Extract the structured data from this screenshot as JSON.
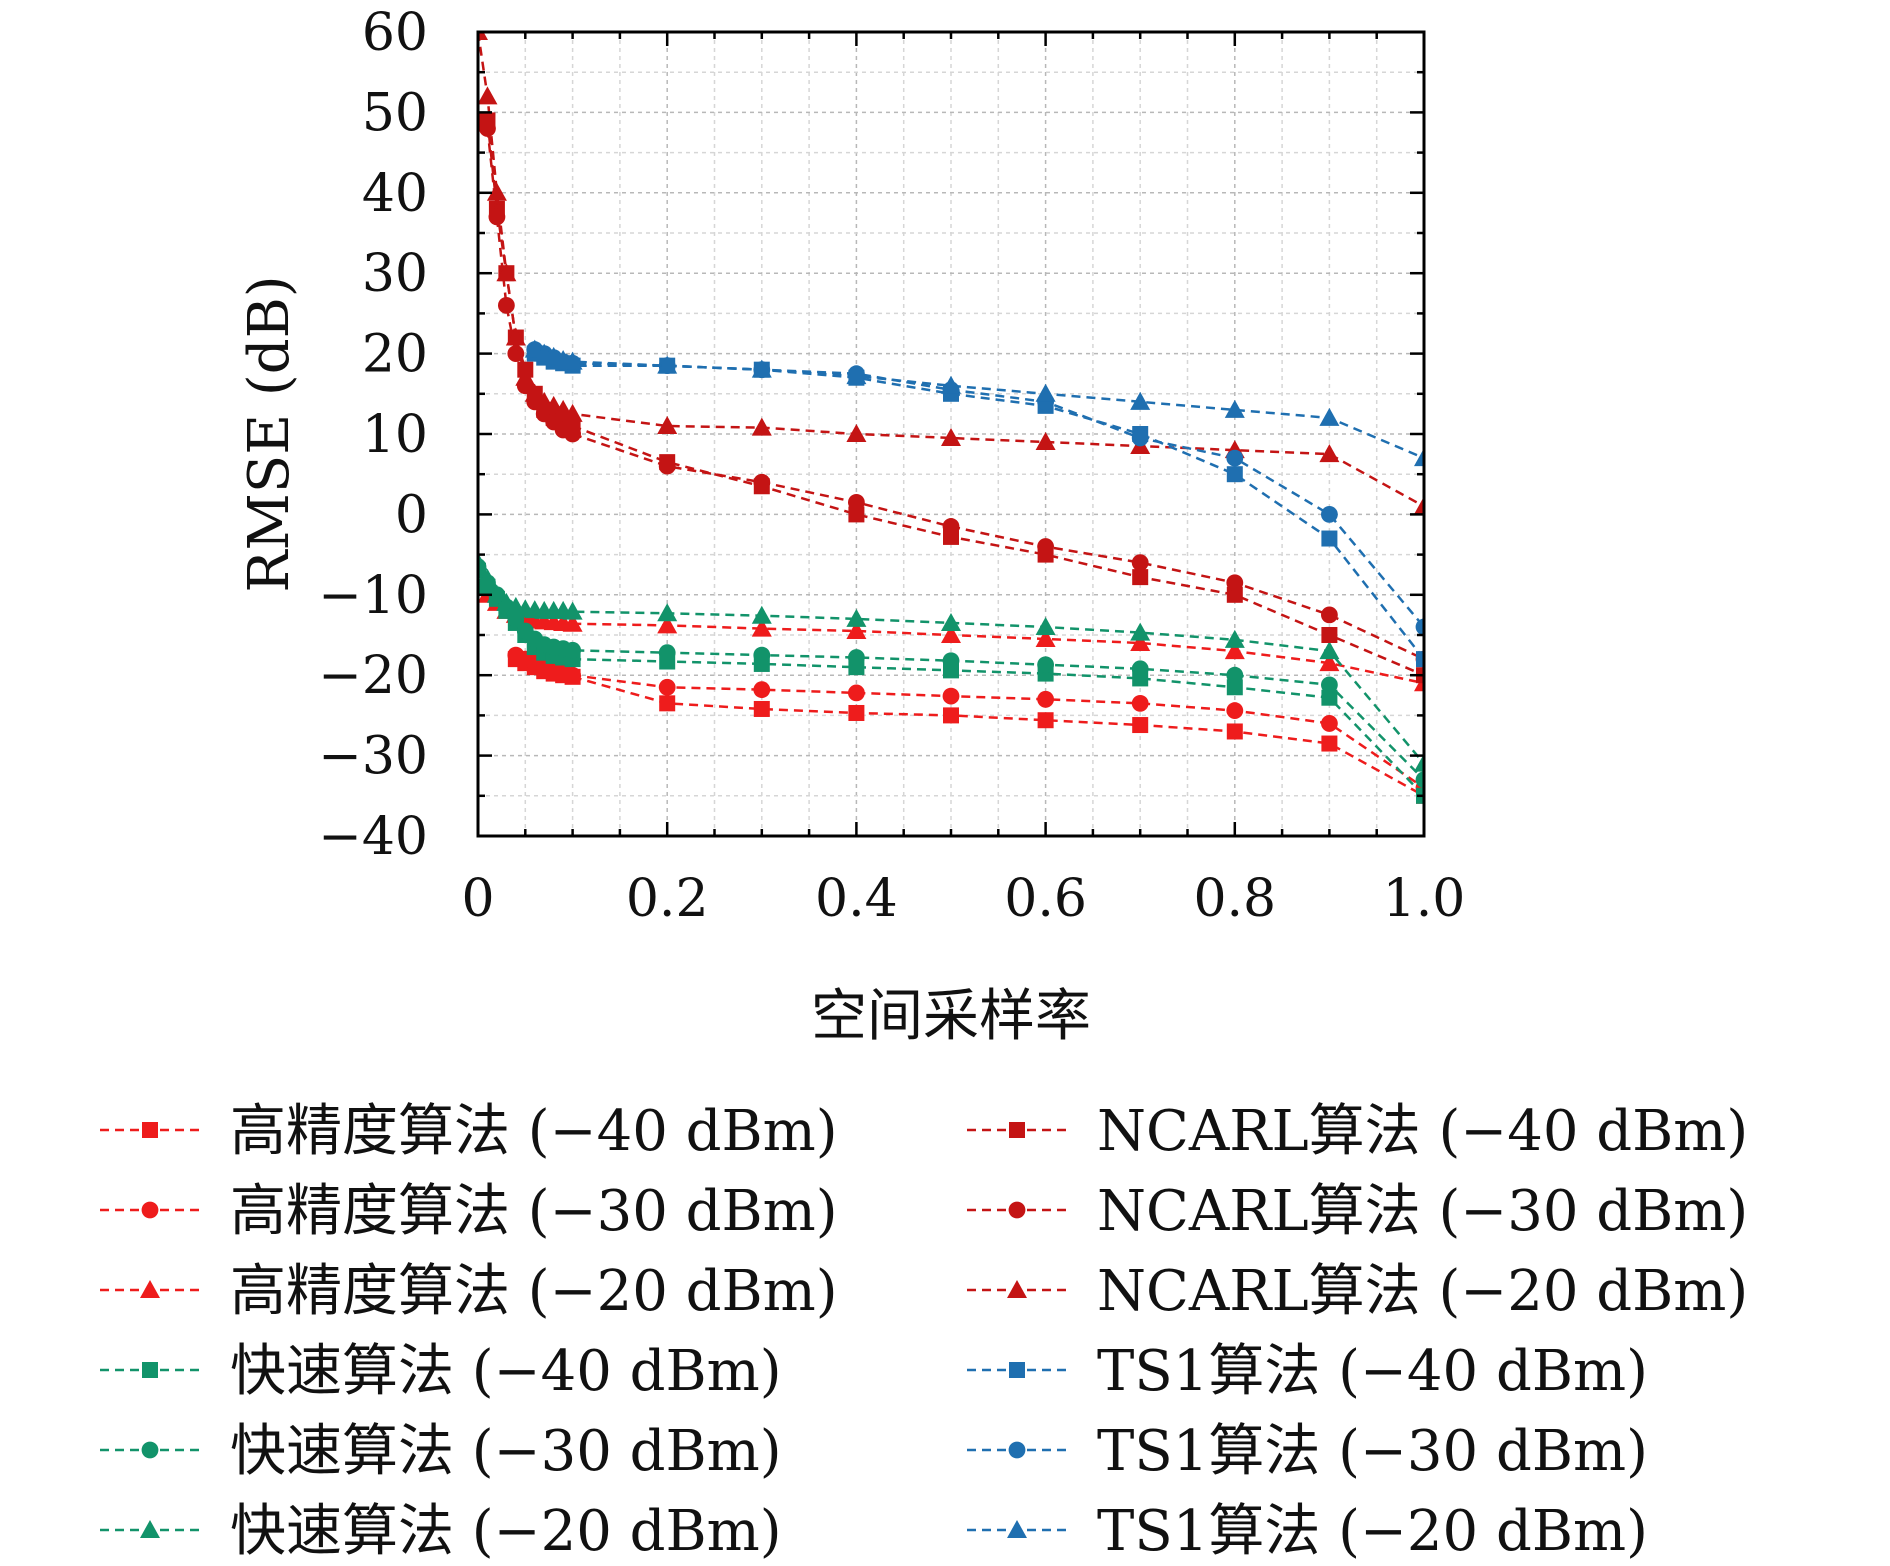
{
  "chart_data": {
    "type": "line",
    "xlabel": "空间采样率",
    "ylabel": "RMSE (dB)",
    "xlim": [
      0,
      1.0
    ],
    "ylim": [
      -40,
      60
    ],
    "x_ticks": [
      0,
      0.2,
      0.4,
      0.6,
      0.8,
      1.0
    ],
    "x_tick_labels": [
      "0",
      "0.2",
      "0.4",
      "0.6",
      "0.8",
      "1.0"
    ],
    "y_ticks": [
      60,
      50,
      40,
      30,
      20,
      10,
      0,
      -10,
      -20,
      -30,
      -40
    ],
    "y_tick_labels": [
      "60",
      "50",
      "40",
      "30",
      "20",
      "10",
      "0",
      "−10",
      "−20",
      "−30",
      "−40"
    ],
    "grid": true,
    "legend_position": "bottom",
    "series": [
      {
        "name": "高精度算法 (−40 dBm)",
        "color": "#ee1c1c",
        "marker": "square",
        "x": [
          0.04,
          0.05,
          0.06,
          0.07,
          0.08,
          0.09,
          0.1,
          0.2,
          0.3,
          0.4,
          0.5,
          0.6,
          0.7,
          0.8,
          0.9,
          1.0
        ],
        "y": [
          -18,
          -18.5,
          -19,
          -19.5,
          -19.8,
          -20,
          -20.2,
          -23.5,
          -24.2,
          -24.7,
          -25,
          -25.6,
          -26.2,
          -27,
          -28.5,
          -35
        ]
      },
      {
        "name": "高精度算法 (−30 dBm)",
        "color": "#ee1c1c",
        "marker": "circle",
        "x": [
          0.04,
          0.05,
          0.06,
          0.07,
          0.08,
          0.09,
          0.1,
          0.2,
          0.3,
          0.4,
          0.5,
          0.6,
          0.7,
          0.8,
          0.9,
          1.0
        ],
        "y": [
          -17.5,
          -18,
          -18.5,
          -19,
          -19.3,
          -19.6,
          -20,
          -21.5,
          -21.8,
          -22.2,
          -22.6,
          -23,
          -23.5,
          -24.4,
          -26,
          -34
        ]
      },
      {
        "name": "高精度算法 (−20 dBm)",
        "color": "#ee1c1c",
        "marker": "triangle",
        "x": [
          0,
          0.01,
          0.02,
          0.03,
          0.04,
          0.05,
          0.06,
          0.07,
          0.08,
          0.09,
          0.1,
          0.2,
          0.3,
          0.4,
          0.5,
          0.6,
          0.7,
          0.8,
          0.9,
          1.0
        ],
        "y": [
          -9,
          -10,
          -11,
          -12,
          -12.5,
          -13,
          -13.2,
          -13.3,
          -13.4,
          -13.5,
          -13.6,
          -13.8,
          -14.2,
          -14.5,
          -15,
          -15.5,
          -16,
          -17,
          -18.5,
          -21
        ]
      },
      {
        "name": "快速算法 (−40 dBm)",
        "color": "#12936a",
        "marker": "square",
        "x": [
          0,
          0.01,
          0.02,
          0.03,
          0.04,
          0.05,
          0.06,
          0.07,
          0.08,
          0.09,
          0.1,
          0.2,
          0.3,
          0.4,
          0.5,
          0.6,
          0.7,
          0.8,
          0.9,
          1.0
        ],
        "y": [
          -7,
          -9,
          -10.5,
          -12,
          -13.5,
          -15,
          -16.5,
          -17.2,
          -17.6,
          -17.8,
          -18,
          -18.3,
          -18.6,
          -19,
          -19.4,
          -19.8,
          -20.4,
          -21.5,
          -22.8,
          -35
        ]
      },
      {
        "name": "快速算法 (−30 dBm)",
        "color": "#12936a",
        "marker": "circle",
        "x": [
          0,
          0.01,
          0.02,
          0.03,
          0.04,
          0.05,
          0.06,
          0.07,
          0.08,
          0.09,
          0.1,
          0.2,
          0.3,
          0.4,
          0.5,
          0.6,
          0.7,
          0.8,
          0.9,
          1.0
        ],
        "y": [
          -6.5,
          -8.5,
          -10,
          -11.5,
          -13,
          -14.5,
          -15.5,
          -16.2,
          -16.5,
          -16.7,
          -16.9,
          -17.2,
          -17.5,
          -17.8,
          -18.2,
          -18.7,
          -19.2,
          -20,
          -21.2,
          -33
        ]
      },
      {
        "name": "快速算法 (−20 dBm)",
        "color": "#12936a",
        "marker": "triangle",
        "x": [
          0,
          0.01,
          0.02,
          0.03,
          0.04,
          0.05,
          0.06,
          0.07,
          0.08,
          0.09,
          0.1,
          0.2,
          0.3,
          0.4,
          0.5,
          0.6,
          0.7,
          0.8,
          0.9,
          1.0
        ],
        "y": [
          -6,
          -8,
          -10,
          -11,
          -11.5,
          -11.8,
          -11.9,
          -12,
          -12,
          -12,
          -12.1,
          -12.3,
          -12.6,
          -13,
          -13.5,
          -14,
          -14.7,
          -15.6,
          -17,
          -31
        ]
      },
      {
        "name": "NCARL算法 (−40 dBm)",
        "color": "#c41414",
        "marker": "square",
        "x": [
          0.01,
          0.02,
          0.03,
          0.04,
          0.05,
          0.06,
          0.07,
          0.08,
          0.09,
          0.1,
          0.2,
          0.3,
          0.4,
          0.5,
          0.6,
          0.7,
          0.8,
          0.9,
          1.0
        ],
        "y": [
          49,
          38,
          30,
          22,
          18,
          15,
          13,
          12,
          11.5,
          11,
          6.5,
          3.5,
          0,
          -2.8,
          -5,
          -7.8,
          -10,
          -15,
          -20
        ]
      },
      {
        "name": "NCARL算法 (−30 dBm)",
        "color": "#c41414",
        "marker": "circle",
        "x": [
          0.01,
          0.02,
          0.03,
          0.04,
          0.05,
          0.06,
          0.07,
          0.08,
          0.09,
          0.1,
          0.2,
          0.3,
          0.4,
          0.5,
          0.6,
          0.7,
          0.8,
          0.9,
          1.0
        ],
        "y": [
          48,
          37,
          26,
          20,
          16,
          14,
          12.5,
          11.5,
          10.5,
          10,
          6,
          4,
          1.5,
          -1.5,
          -4,
          -6,
          -8.5,
          -12.5,
          -18
        ]
      },
      {
        "name": "NCARL算法 (−20 dBm)",
        "color": "#c41414",
        "marker": "triangle",
        "x": [
          0,
          0.01,
          0.02,
          0.03,
          0.04,
          0.05,
          0.06,
          0.07,
          0.08,
          0.09,
          0.1,
          0.2,
          0.3,
          0.4,
          0.5,
          0.6,
          0.7,
          0.8,
          0.9,
          1.0
        ],
        "y": [
          60,
          52,
          40,
          30,
          22,
          17,
          15,
          14,
          13.5,
          13,
          12.5,
          11,
          10.8,
          10,
          9.5,
          9,
          8.5,
          8,
          7.5,
          1
        ]
      },
      {
        "name": "TS1算法 (−40 dBm)",
        "color": "#1f6fb0",
        "marker": "square",
        "x": [
          0.06,
          0.07,
          0.08,
          0.09,
          0.1,
          0.2,
          0.3,
          0.4,
          0.5,
          0.6,
          0.7,
          0.8,
          0.9,
          1.0
        ],
        "y": [
          20,
          19.5,
          19,
          18.8,
          18.5,
          18.5,
          18,
          17,
          15,
          13.5,
          10,
          5,
          -3,
          -18
        ]
      },
      {
        "name": "TS1算法 (−30 dBm)",
        "color": "#1f6fb0",
        "marker": "circle",
        "x": [
          0.06,
          0.07,
          0.08,
          0.09,
          0.1,
          0.2,
          0.3,
          0.4,
          0.5,
          0.6,
          0.7,
          0.8,
          0.9,
          1.0
        ],
        "y": [
          20.5,
          20,
          19.5,
          19,
          18.8,
          18.5,
          18,
          17.5,
          15.5,
          14,
          9.5,
          7,
          0,
          -14
        ]
      },
      {
        "name": "TS1算法 (−20 dBm)",
        "color": "#1f6fb0",
        "marker": "triangle",
        "x": [
          0.06,
          0.07,
          0.08,
          0.09,
          0.1,
          0.2,
          0.3,
          0.4,
          0.5,
          0.6,
          0.7,
          0.8,
          0.9,
          1.0
        ],
        "y": [
          20.5,
          20,
          19.6,
          19.2,
          19,
          18.5,
          18,
          17.2,
          16,
          15,
          14,
          13,
          12,
          7
        ]
      }
    ]
  }
}
